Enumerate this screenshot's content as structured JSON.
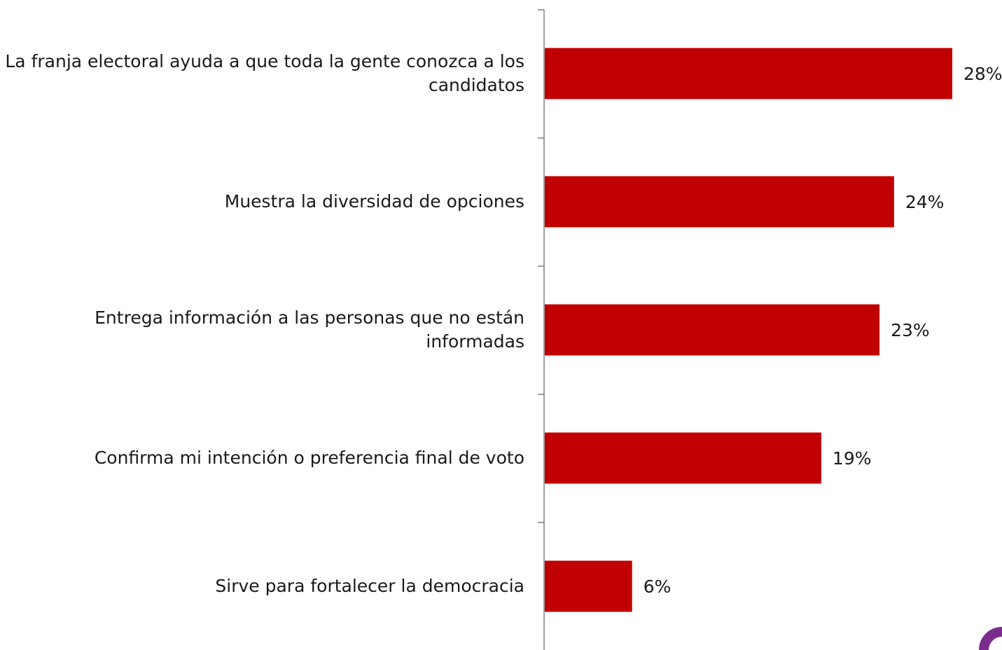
{
  "chart_data": {
    "type": "bar",
    "orientation": "horizontal",
    "categories": [
      "La franja electoral ayuda a que toda la gente conozca a los candidatos",
      "Muestra la diversidad de opciones",
      "Entrega información a las personas que no están informadas",
      "Confirma mi intención o preferencia final de voto",
      "Sirve para fortalecer la democracia"
    ],
    "values": [
      28,
      24,
      23,
      19,
      6
    ],
    "value_labels": [
      "28%",
      "24%",
      "23%",
      "19%",
      "6%"
    ],
    "title": "",
    "xlabel": "",
    "ylabel": "",
    "xlim": [
      0,
      31
    ],
    "grid": false,
    "legend": "none",
    "colors": {
      "bar": "#c00000",
      "axis": "#7f7f7f",
      "text": "#1a1a1a",
      "brand_mark": "#7b2d8e"
    }
  },
  "icons": {
    "brand_mark": "partial-logo-icon"
  }
}
